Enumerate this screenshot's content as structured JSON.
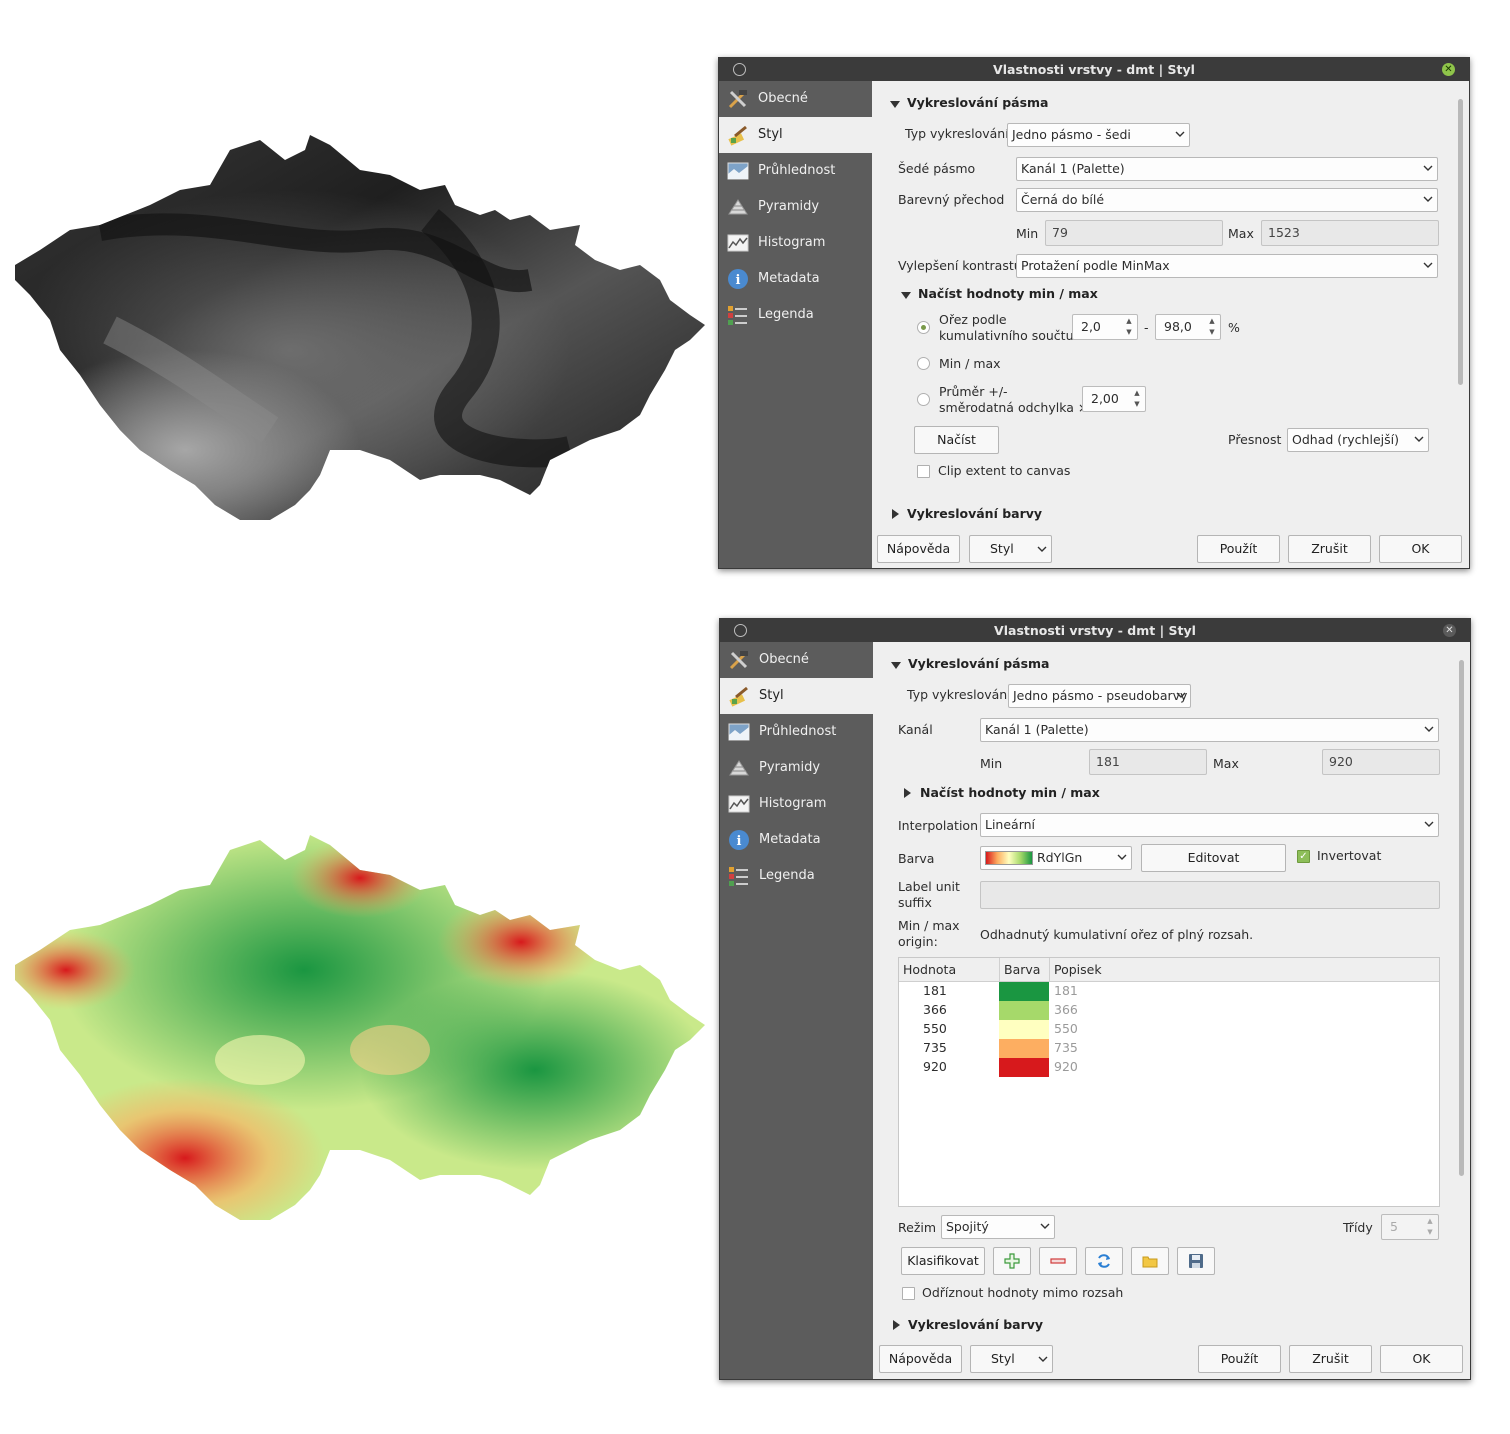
{
  "dialog_top": {
    "title": "Vlastnosti vrstvy - dmt | Styl",
    "sidebar": [
      "Obecné",
      "Styl",
      "Průhlednost",
      "Pyramidy",
      "Histogram",
      "Metadata",
      "Legenda"
    ],
    "section_render": "Vykreslování pásma",
    "render_type_label": "Typ vykreslování",
    "render_type_value": "Jedno pásmo - šedi",
    "gray_band_label": "Šedé pásmo",
    "gray_band_value": "Kanál 1 (Palette)",
    "color_ramp_label": "Barevný přechod",
    "color_ramp_value": "Černá do bílé",
    "min_label": "Min",
    "min_value": "79",
    "max_label": "Max",
    "max_value": "1523",
    "contrast_label": "Vylepšení kontrastu",
    "contrast_value": "Protažení podle MinMax",
    "load_section": "Načíst hodnoty min / max",
    "cumulative_line1": "Ořez podle",
    "cumulative_line2": "kumulativního součtu",
    "cum_low": "2,0",
    "cum_dash": "-",
    "cum_high": "98,0",
    "percent": "%",
    "minmax_option": "Min / max",
    "stddev_line1": "Průměr +/-",
    "stddev_line2": "směrodatná odchylka ×",
    "stddev_value": "2,00",
    "load_button": "Načíst",
    "accuracy_label": "Přesnost",
    "accuracy_value": "Odhad (rychlejší)",
    "clip_label": "Clip extent to canvas",
    "section_color": "Vykreslování barvy",
    "footer": {
      "help": "Nápověda",
      "style": "Styl",
      "apply": "Použít",
      "cancel": "Zrušit",
      "ok": "OK"
    }
  },
  "dialog_bottom": {
    "title": "Vlastnosti vrstvy - dmt | Styl",
    "sidebar": [
      "Obecné",
      "Styl",
      "Průhlednost",
      "Pyramidy",
      "Histogram",
      "Metadata",
      "Legenda"
    ],
    "section_render": "Vykreslování pásma",
    "render_type_label": "Typ vykreslování",
    "render_type_value": "Jedno pásmo - pseudobarvy",
    "band_label": "Kanál",
    "band_value": "Kanál 1 (Palette)",
    "min_label": "Min",
    "min_value": "181",
    "max_label": "Max",
    "max_value": "920",
    "load_section": "Načíst hodnoty min / max",
    "interp_label": "Interpolation",
    "interp_value": "Lineární",
    "color_label": "Barva",
    "color_value": "RdYlGn",
    "edit_button": "Editovat",
    "invert_label": "Invertovat",
    "unit_label_line1": "Label unit",
    "unit_label_line2": "suffix",
    "origin_label_line1": "Min / max",
    "origin_label_line2": "origin:",
    "origin_value": "Odhadnutý kumulativní ořez of plný rozsah.",
    "table_headers": [
      "Hodnota",
      "Barva",
      "Popisek"
    ],
    "table_rows": [
      {
        "value": "181",
        "color": "#1a9641",
        "label": "181"
      },
      {
        "value": "366",
        "color": "#a6d96a",
        "label": "366"
      },
      {
        "value": "550",
        "color": "#ffffc0",
        "label": "550"
      },
      {
        "value": "735",
        "color": "#fdae61",
        "label": "735"
      },
      {
        "value": "920",
        "color": "#d7191c",
        "label": "920"
      }
    ],
    "mode_label": "Režim",
    "mode_value": "Spojitý",
    "classes_label": "Třídy",
    "classes_value": "5",
    "classify_button": "Klasifikovat",
    "clip_label": "Odříznout hodnoty mimo rozsah",
    "section_color": "Vykreslování barvy",
    "footer": {
      "help": "Nápověda",
      "style": "Styl",
      "apply": "Použít",
      "cancel": "Zrušit",
      "ok": "OK"
    }
  },
  "colors": {
    "sidebar_bg": "#5c5c5c",
    "titlebar_bg": "#3b3b3b",
    "dialog_bg": "#efefef",
    "map_gray_dark": "#2a2a2a",
    "map_gray_light": "#a8a8a8",
    "map_green": "#1a9641",
    "map_yellow": "#e6f5a0",
    "map_red": "#d7191c"
  }
}
